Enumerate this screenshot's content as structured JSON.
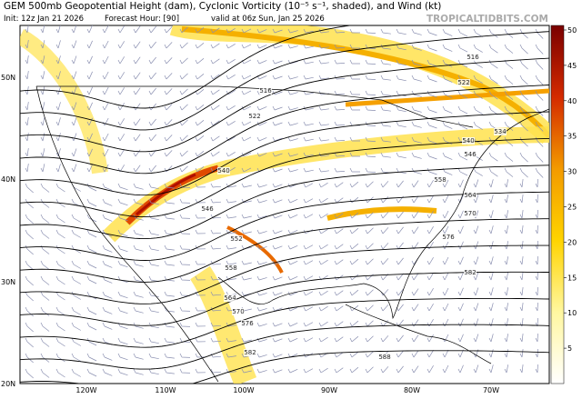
{
  "header": {
    "title": "GEM 500mb Geopotential Height (dam), Cyclonic Vorticity (10⁻⁵ s⁻¹, shaded), and Wind (kt)",
    "init": "Init: 12z Jan 21 2026",
    "forecast_hour": "Forecast Hour: [90]",
    "valid": "valid at 06z Sun, Jan 25 2026",
    "site": "TROPICALTIDBITS.COM"
  },
  "map": {
    "latitudes": [
      "50N",
      "40N",
      "30N",
      "20N"
    ],
    "longitudes": [
      "120W",
      "110W",
      "100W",
      "90W",
      "80W",
      "70W"
    ],
    "contour_labels": [
      "516",
      "516",
      "522",
      "522",
      "534",
      "540",
      "540",
      "546",
      "546",
      "552",
      "558",
      "558",
      "564",
      "564",
      "570",
      "570",
      "576",
      "576",
      "582",
      "582",
      "588"
    ]
  },
  "colorbar": {
    "ticks": [
      5,
      10,
      15,
      20,
      25,
      30,
      35,
      40,
      45,
      50
    ]
  }
}
